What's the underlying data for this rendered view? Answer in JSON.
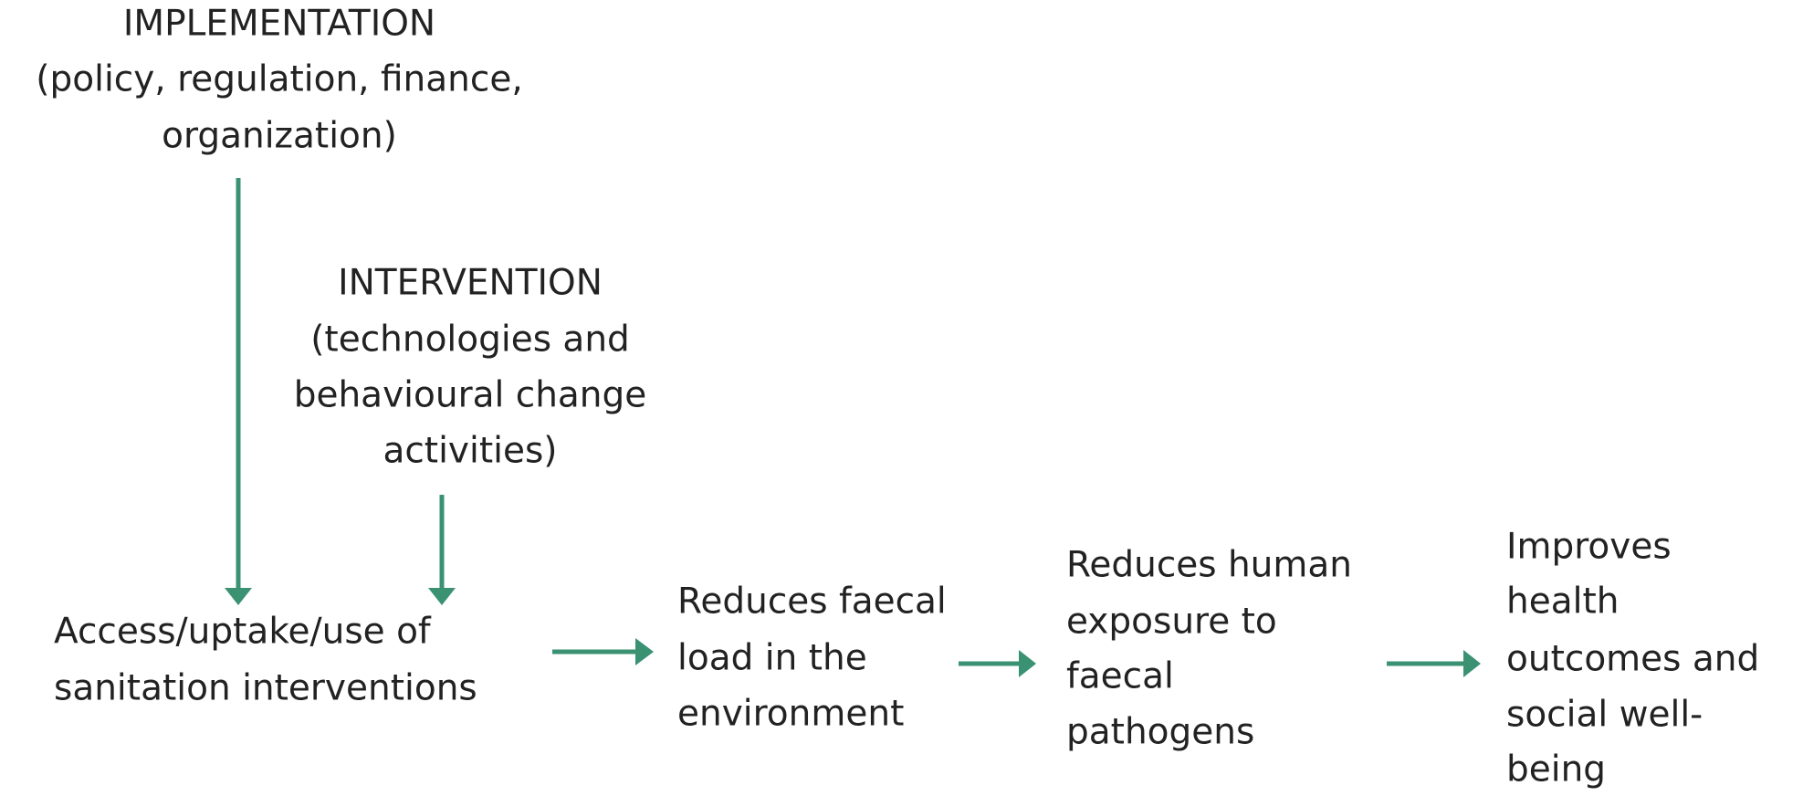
{
  "nodes": [
    {
      "lines": [
        "IMPLEMENTATION",
        "(policy, regulation, finance,",
        "organization)"
      ]
    },
    {
      "lines": [
        "INTERVENTION",
        "(technologies and",
        "behavioural change",
        "activities)"
      ]
    },
    {
      "lines": [
        "Access/uptake/use of",
        "sanitation interventions"
      ]
    },
    {
      "lines": [
        "Reduces faecal",
        "load in the",
        "environment"
      ]
    },
    {
      "lines": [
        "Reduces human",
        "exposure to",
        "faecal",
        "pathogens"
      ]
    },
    {
      "lines": [
        "Improves",
        "health",
        "outcomes and",
        "social well-",
        "being"
      ]
    }
  ]
}
